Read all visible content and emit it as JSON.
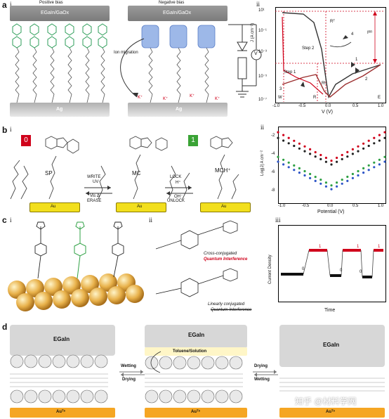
{
  "panel_a": {
    "label": "a",
    "sub_i": "i",
    "sub_ii": "ii",
    "positive_bias": "Positive bias",
    "negative_bias": "Negative bias",
    "electrode_top": "EGaIn/GaOx",
    "electrode_top2": "EGaIn/GaOx",
    "electrode_bottom": "Ag",
    "electrode_bottom2": "Ag",
    "ion_migration": "Ion migration",
    "meter": "V",
    "chart": {
      "xlabel": "V (V)",
      "ylabel": "J (A cm⁻²)",
      "yticks": [
        "10¹",
        "10⁻¹",
        "10⁻³",
        "10⁻⁵",
        "10⁻⁷"
      ],
      "xticks": [
        "-1.0",
        "-0.5",
        "0.0",
        "0.5",
        "1.0"
      ],
      "ann_RT": "Rᵀ",
      "ann_RL": "Rᴸ",
      "ann_step1": "Step 1",
      "ann_step2": "Step 2",
      "ann_irr": "Iᴿᴿ",
      "ann_1": "1",
      "ann_2": "2",
      "ann_3": "3",
      "ann_4": "4",
      "ann_W": "W",
      "ann_R": "R",
      "ann_E": "E"
    }
  },
  "panel_b": {
    "label": "b",
    "sub_i": "i",
    "sub_ii": "ii",
    "state_0": "0",
    "state_1": "1",
    "sp": "SP",
    "mc": "MC",
    "mch": "MCH⁺",
    "write": "WRITE",
    "uv": "UV",
    "vis": "Vis Δ",
    "erase": "ERASE",
    "lock": "LOCK",
    "h_plus": "H⁺",
    "oh_minus": "OH⁻",
    "unlock": "UNLOCK",
    "au": "Au",
    "au2": "Au",
    "au3": "Au",
    "chart": {
      "xlabel": "Potential (V)",
      "ylabel": "Log|J| A cm⁻²",
      "yticks": [
        "-2",
        "-4",
        "-6",
        "-8"
      ],
      "xticks": [
        "-1.0",
        "-0.5",
        "0.0",
        "0.5",
        "1.0"
      ]
    }
  },
  "panel_c": {
    "label": "c",
    "sub_i": "i",
    "sub_ii": "ii",
    "sub_iii": "iii",
    "cross": "Cross-conjugated",
    "qi": "Quantum Interference",
    "linear": "Linearly conjugated",
    "qi2": "Quantum Interference",
    "sac": "SAc",
    "chart": {
      "xlabel": "Time",
      "ylabel": "Current Density",
      "levels": [
        "0",
        "1",
        "0",
        "1",
        "0",
        "1"
      ]
    }
  },
  "panel_d": {
    "label": "d",
    "egain1": "EGaIn",
    "egain2": "EGaIn",
    "egain3": "EGaIn",
    "solution": "Toluene/Solution",
    "wetting": "Wetting",
    "drying": "Drying",
    "drying2": "Drying",
    "wetting2": "Wetting",
    "au_ts1": "Auᵀˢ",
    "au_ts2": "Auᵀˢ",
    "au_ts3": "Auᵀˢ",
    "watermark": "知乎 @材料学网"
  },
  "colors": {
    "grey_electrode": "#8c8c8c",
    "gold": "#f5a623",
    "au_yellow": "#f2df1d",
    "red": "#d0021b",
    "green_state": "#3aa335"
  }
}
